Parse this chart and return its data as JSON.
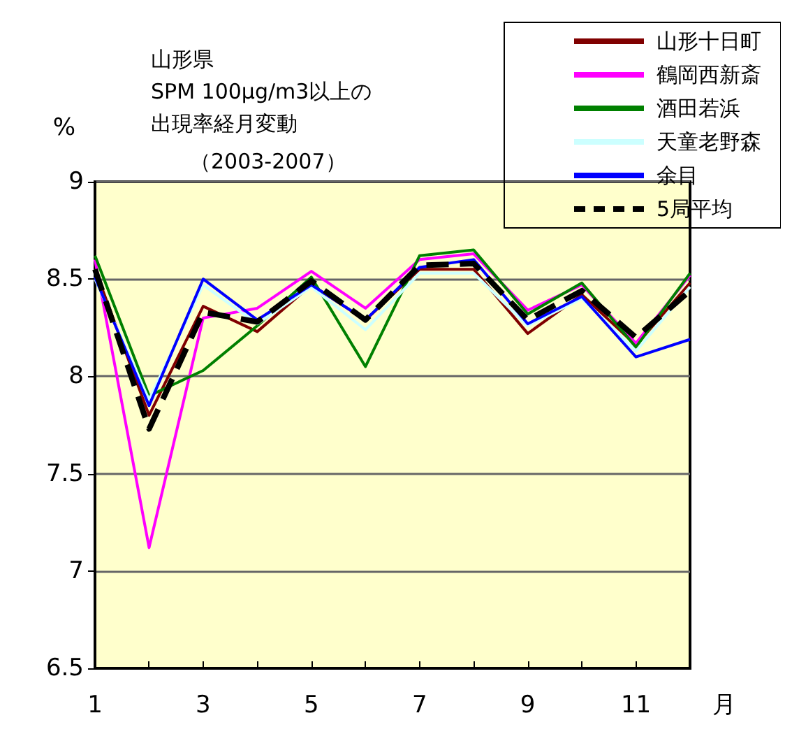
{
  "chart_data": {
    "type": "line",
    "title": "山形県",
    "subtitle": "SPM 100μg/m3以上の出現率経月変動",
    "annotations": [
      "（2003-2007）"
    ],
    "xlabel": "月",
    "ylabel": "%",
    "x": [
      1,
      2,
      3,
      4,
      5,
      6,
      7,
      8,
      9,
      10,
      11,
      12
    ],
    "xlim": [
      1,
      12
    ],
    "xticks": [
      1,
      {
        "value": 2,
        "label": null
      },
      3,
      {
        "value": 4,
        "label": null
      },
      5,
      {
        "value": 6,
        "label": null
      },
      7,
      {
        "value": 8,
        "label": null
      },
      9,
      {
        "value": 10,
        "label": null
      },
      11
    ],
    "ylim": [
      6.5,
      9
    ],
    "yticks": [
      6.5,
      7,
      7.5,
      8,
      8.5,
      9
    ],
    "grid": "y",
    "legend": "top right",
    "marker": "none",
    "series": [
      {
        "name": "山形十日町",
        "color": "#800000",
        "values": [
          8.55,
          7.8,
          8.36,
          8.23,
          8.47,
          8.29,
          8.55,
          8.55,
          8.22,
          8.42,
          8.16,
          8.48
        ]
      },
      {
        "name": "鶴岡西新斎",
        "color": "#ff00ff",
        "values": [
          8.6,
          7.12,
          8.3,
          8.35,
          8.54,
          8.35,
          8.6,
          8.63,
          8.34,
          8.47,
          8.17,
          8.52
        ]
      },
      {
        "name": "酒田若浜",
        "color": "#008000",
        "values": [
          8.62,
          7.9,
          8.03,
          8.26,
          8.51,
          8.05,
          8.62,
          8.65,
          8.32,
          8.48,
          8.15,
          8.53
        ]
      },
      {
        "name": "天童老野森",
        "color": "#ccffff",
        "values": [
          8.5,
          7.88,
          8.47,
          8.27,
          8.46,
          8.24,
          8.53,
          8.53,
          8.26,
          8.4,
          8.13,
          8.46
        ]
      },
      {
        "name": "余目",
        "color": "#0000ff",
        "values": [
          8.51,
          7.85,
          8.5,
          8.29,
          8.47,
          8.29,
          8.56,
          8.6,
          8.27,
          8.41,
          8.1,
          8.19
        ]
      },
      {
        "name": "5局平均",
        "color": "#000000",
        "line_style": "dashed",
        "values": [
          8.55,
          7.73,
          8.33,
          8.28,
          8.49,
          8.29,
          8.57,
          8.58,
          8.29,
          8.44,
          8.2,
          8.44
        ]
      }
    ]
  }
}
